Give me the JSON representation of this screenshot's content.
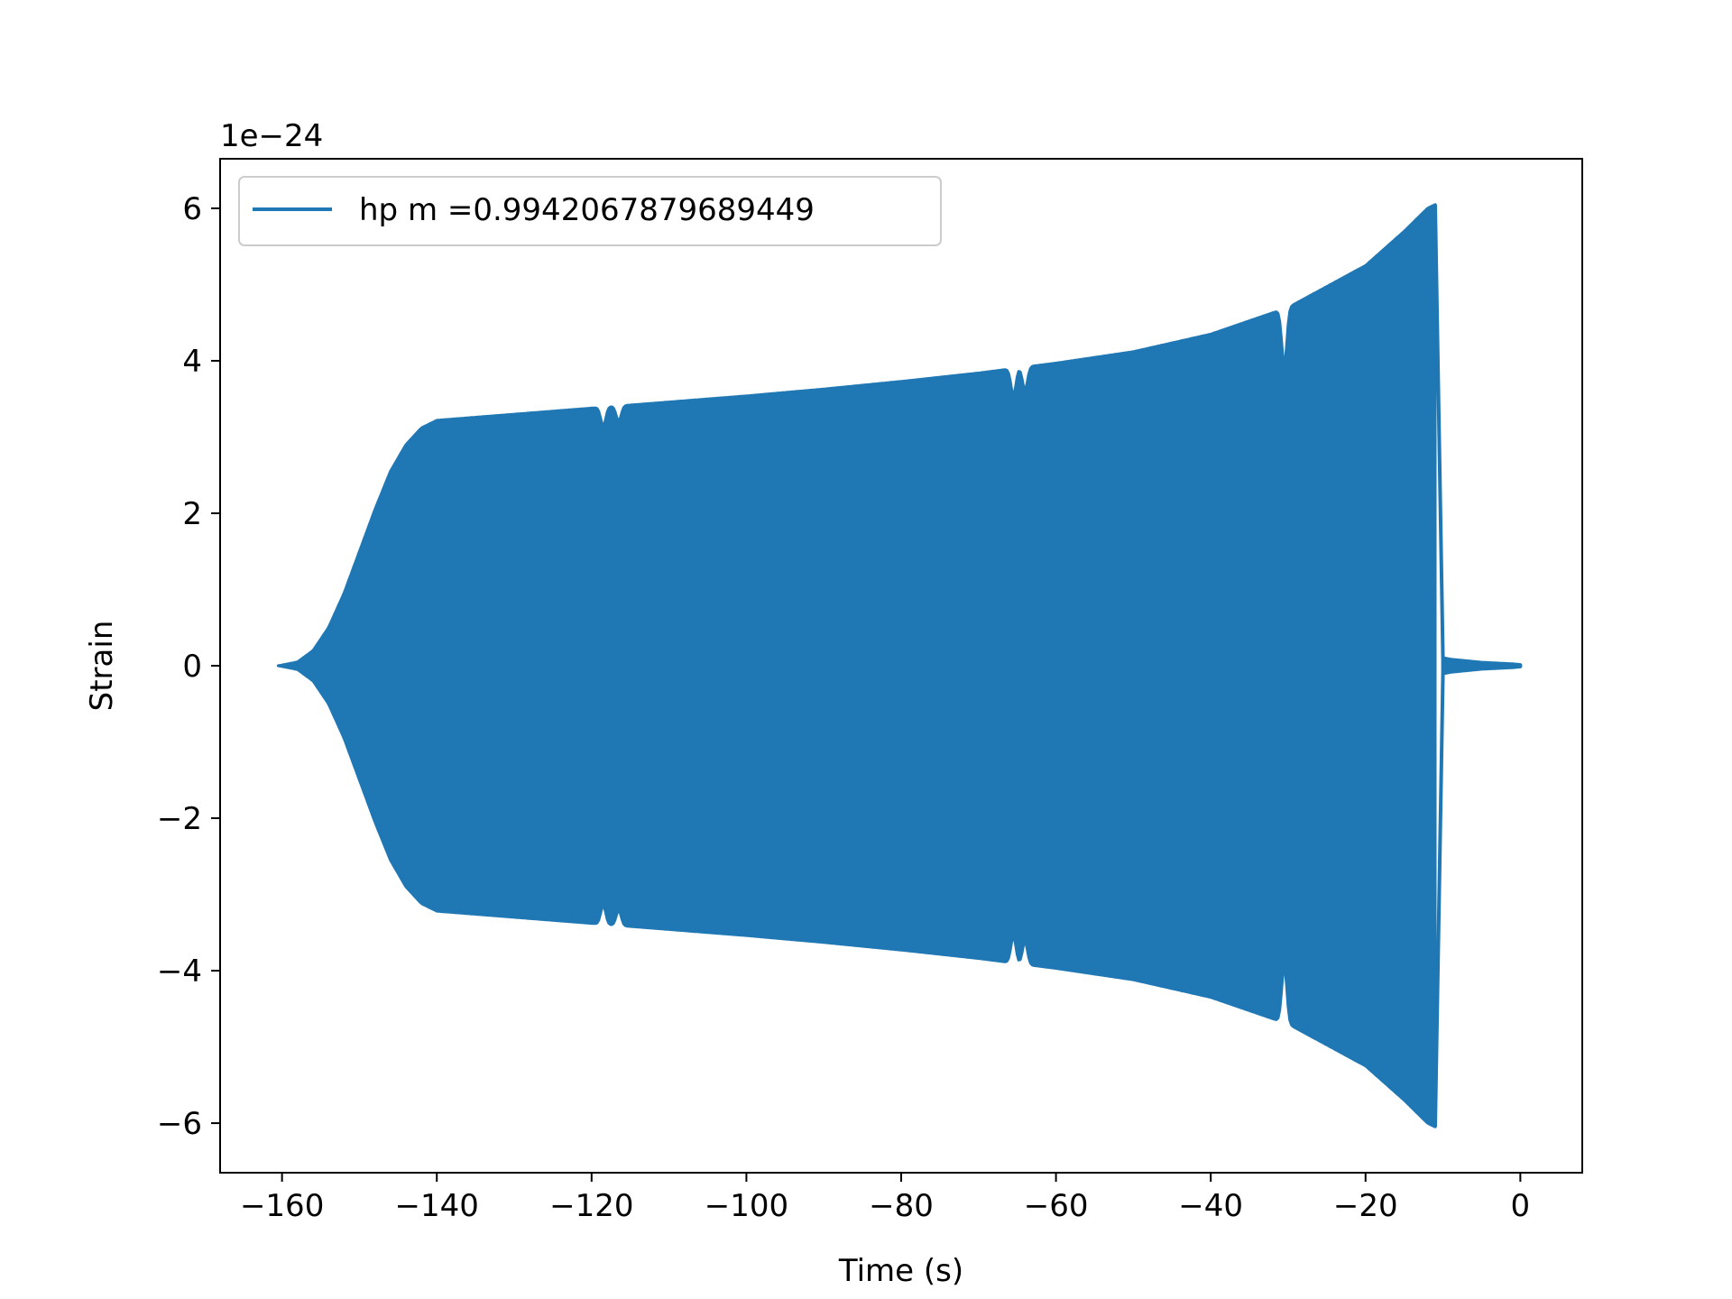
{
  "chart_data": {
    "type": "line",
    "title": "",
    "xlabel": "Time (s)",
    "ylabel": "Strain",
    "offset_label": "1e−24",
    "xlim": [
      -168,
      8
    ],
    "ylim": [
      -6.65,
      6.65
    ],
    "xticks": [
      -160,
      -140,
      -120,
      -100,
      -80,
      -60,
      -40,
      -20,
      0
    ],
    "xtick_labels": [
      "−160",
      "−140",
      "−120",
      "−100",
      "−80",
      "−60",
      "−40",
      "−20",
      "0"
    ],
    "yticks": [
      -6,
      -4,
      -2,
      0,
      2,
      4,
      6
    ],
    "ytick_labels": [
      "−6",
      "−4",
      "−2",
      "0",
      "2",
      "4",
      "6"
    ],
    "grid": false,
    "legend_position": "upper-left",
    "series": [
      {
        "name": "hp m =0.9942067879689449",
        "color": "#1f77b4",
        "style": "oscillating-envelope",
        "envelope": {
          "x": [
            -160.5,
            -158,
            -156,
            -154,
            -152,
            -150,
            -148,
            -146,
            -144,
            -142,
            -140,
            -130,
            -120,
            -110,
            -100,
            -90,
            -80,
            -70,
            -60,
            -50,
            -40,
            -30,
            -20,
            -15,
            -12,
            -11
          ],
          "upper": [
            0.0,
            0.05,
            0.2,
            0.5,
            0.95,
            1.5,
            2.05,
            2.55,
            2.9,
            3.12,
            3.22,
            3.3,
            3.38,
            3.46,
            3.54,
            3.63,
            3.73,
            3.84,
            3.97,
            4.12,
            4.35,
            4.7,
            5.25,
            5.7,
            6.0,
            6.05
          ],
          "lower": [
            0.0,
            -0.05,
            -0.2,
            -0.5,
            -0.95,
            -1.5,
            -2.05,
            -2.55,
            -2.9,
            -3.12,
            -3.22,
            -3.3,
            -3.38,
            -3.46,
            -3.54,
            -3.63,
            -3.73,
            -3.84,
            -3.97,
            -4.12,
            -4.35,
            -4.7,
            -5.25,
            -5.7,
            -6.0,
            -6.05
          ]
        },
        "ringdown": {
          "x": [
            -10,
            -9,
            -7,
            -5,
            -3,
            -1,
            0
          ],
          "upper": [
            0.1,
            0.08,
            0.06,
            0.04,
            0.03,
            0.02,
            0.01
          ],
          "lower": [
            -0.1,
            -0.08,
            -0.06,
            -0.04,
            -0.03,
            -0.02,
            -0.01
          ]
        },
        "dips": [
          {
            "x": -118.5,
            "depth": 0.25
          },
          {
            "x": -116.5,
            "depth": 0.2
          },
          {
            "x": -65.5,
            "depth": 0.35
          },
          {
            "x": -64,
            "depth": 0.3
          },
          {
            "x": -30.5,
            "depth": 0.75
          }
        ]
      }
    ]
  }
}
